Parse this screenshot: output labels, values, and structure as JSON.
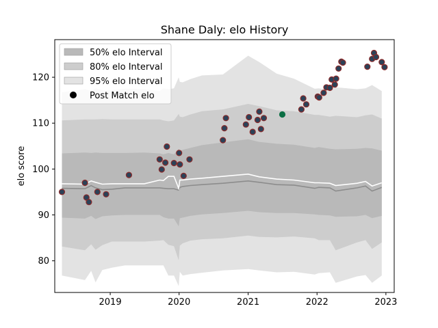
{
  "chart_data": {
    "type": "scatter",
    "title": "Shane Daly: elo History",
    "xlabel": "",
    "ylabel": "elo score",
    "xlim": [
      "2018-03-13",
      "2023-02-14"
    ],
    "ylim": [
      73.1,
      128.2
    ],
    "x_ticks": [
      "2019-01-01",
      "2020-01-01",
      "2021-01-01",
      "2022-01-01",
      "2023-01-01"
    ],
    "x_tick_labels": [
      "2019",
      "2020",
      "2021",
      "2022",
      "2023"
    ],
    "y_ticks": [
      80,
      90,
      100,
      110,
      120
    ],
    "y_tick_labels": [
      "80",
      "90",
      "100",
      "110",
      "120"
    ],
    "grid": false,
    "legend_position": "top-left",
    "colors": {
      "band95": "#e3e3e3",
      "band80": "#cdcdcd",
      "band50": "#b9b9b9",
      "mean_line": "#8c8c8c",
      "upper_line": "#ffffff",
      "point_fill": "#2b4258",
      "point_edge": "#8b2a2a",
      "highlight_fill": "#0b6e44"
    },
    "legend": [
      {
        "label": "50% elo Interval",
        "kind": "band50"
      },
      {
        "label": "80% elo Interval",
        "kind": "band80"
      },
      {
        "label": "95% elo Interval",
        "kind": "band95"
      },
      {
        "label": "Post Match elo",
        "kind": "point"
      }
    ],
    "interval_x": [
      "2018-04-20",
      "2018-08-20",
      "2018-09-22",
      "2018-10-15",
      "2018-11-20",
      "2019-01-10",
      "2019-03-20",
      "2019-07-01",
      "2019-09-20",
      "2019-10-10",
      "2019-11-05",
      "2019-12-05",
      "2019-12-30",
      "2020-01-05",
      "2020-01-20",
      "2020-03-01",
      "2020-05-01",
      "2020-08-20",
      "2021-01-01",
      "2021-03-01",
      "2021-06-01",
      "2021-09-01",
      "2021-12-20",
      "2022-01-10",
      "2022-03-10",
      "2022-04-10",
      "2022-08-01",
      "2022-09-15",
      "2022-10-20",
      "2022-12-10"
    ],
    "band95": [
      [
        76.8,
        75.8,
        77.8,
        75.3,
        78.0,
        78.5,
        79.0,
        79.0,
        79.0,
        79.0,
        76.8,
        76.8,
        74.5,
        77.6,
        76.8,
        77.1,
        77.4,
        77.9,
        78.2,
        77.9,
        77.5,
        77.6,
        77.0,
        77.3,
        77.5,
        75.2,
        76.6,
        76.9,
        75.2,
        76.8
      ],
      [
        116.7,
        117.4,
        117.0,
        117.6,
        117.2,
        117.2,
        117.5,
        117.4,
        117.0,
        117.6,
        117.4,
        117.6,
        120.0,
        119.0,
        118.9,
        119.6,
        120.4,
        120.6,
        124.7,
        123.3,
        120.8,
        119.7,
        117.5,
        117.6,
        117.2,
        117.8,
        117.4,
        117.6,
        118.3,
        117.0
      ]
    ],
    "band80": [
      [
        83.1,
        82.3,
        83.6,
        82.4,
        83.4,
        84.2,
        84.2,
        84.2,
        84.4,
        84.5,
        83.5,
        83.2,
        80.1,
        83.3,
        83.8,
        84.4,
        84.7,
        84.9,
        85.5,
        85.2,
        85.1,
        85.3,
        84.9,
        84.5,
        84.5,
        82.3,
        84.0,
        84.5,
        82.6,
        84.0
      ],
      [
        110.6,
        110.8,
        110.8,
        110.8,
        110.9,
        110.8,
        110.8,
        110.8,
        110.8,
        110.6,
        110.4,
        110.6,
        112.0,
        111.4,
        111.3,
        111.9,
        112.6,
        113.0,
        114.2,
        113.7,
        112.8,
        112.6,
        111.8,
        111.8,
        111.4,
        111.6,
        111.3,
        111.7,
        111.9,
        111.0
      ]
    ],
    "band50": [
      [
        89.4,
        89.2,
        89.8,
        89.1,
        89.7,
        89.9,
        90.0,
        90.0,
        90.0,
        89.5,
        89.2,
        89.2,
        87.5,
        89.3,
        89.4,
        89.8,
        90.1,
        90.4,
        90.9,
        90.6,
        90.4,
        90.4,
        90.1,
        90.0,
        89.9,
        89.6,
        89.7,
        90.0,
        89.3,
        89.8
      ],
      [
        103.4,
        103.6,
        103.5,
        103.6,
        103.5,
        103.5,
        103.5,
        103.6,
        103.4,
        103.2,
        103.5,
        103.2,
        104.4,
        104.0,
        104.2,
        104.6,
        105.2,
        105.8,
        106.5,
        105.9,
        105.5,
        105.3,
        104.6,
        104.8,
        104.4,
        104.3,
        104.4,
        104.6,
        104.5,
        104.0
      ]
    ],
    "mean_line": [
      95.8,
      95.7,
      96.4,
      95.9,
      95.5,
      95.6,
      95.9,
      95.9,
      95.9,
      95.8,
      95.7,
      95.7,
      95.4,
      96.0,
      96.2,
      96.4,
      96.6,
      96.9,
      97.4,
      97.1,
      96.6,
      96.5,
      95.8,
      96.0,
      95.9,
      95.2,
      95.9,
      96.3,
      95.2,
      96.0
    ],
    "upper_line": [
      96.8,
      96.7,
      97.4,
      97.1,
      96.7,
      96.8,
      96.8,
      96.8,
      97.6,
      97.5,
      98.4,
      98.4,
      95.8,
      97.6,
      97.6,
      97.8,
      98.0,
      98.4,
      98.9,
      98.3,
      97.8,
      97.6,
      97.0,
      97.0,
      96.9,
      96.4,
      96.9,
      97.3,
      96.3,
      97.0
    ],
    "points": [
      {
        "x": "2018-04-20",
        "y": 95.0
      },
      {
        "x": "2018-08-20",
        "y": 97.0
      },
      {
        "x": "2018-08-28",
        "y": 93.8
      },
      {
        "x": "2018-09-10",
        "y": 92.8
      },
      {
        "x": "2018-10-25",
        "y": 95.0
      },
      {
        "x": "2018-12-10",
        "y": 94.5
      },
      {
        "x": "2019-04-10",
        "y": 98.7
      },
      {
        "x": "2019-09-20",
        "y": 102.1
      },
      {
        "x": "2019-10-01",
        "y": 99.9
      },
      {
        "x": "2019-10-20",
        "y": 101.4
      },
      {
        "x": "2019-10-28",
        "y": 104.9
      },
      {
        "x": "2019-12-05",
        "y": 101.3
      },
      {
        "x": "2020-01-01",
        "y": 103.5
      },
      {
        "x": "2020-01-05",
        "y": 101.0
      },
      {
        "x": "2020-01-25",
        "y": 98.5
      },
      {
        "x": "2020-02-25",
        "y": 102.1
      },
      {
        "x": "2020-08-20",
        "y": 106.3
      },
      {
        "x": "2020-08-28",
        "y": 108.9
      },
      {
        "x": "2020-09-05",
        "y": 111.1
      },
      {
        "x": "2020-12-20",
        "y": 109.7
      },
      {
        "x": "2021-01-05",
        "y": 111.3
      },
      {
        "x": "2021-01-25",
        "y": 108.1
      },
      {
        "x": "2021-02-20",
        "y": 110.7
      },
      {
        "x": "2021-03-01",
        "y": 112.5
      },
      {
        "x": "2021-03-10",
        "y": 108.7
      },
      {
        "x": "2021-03-25",
        "y": 111.1
      },
      {
        "x": "2021-07-01",
        "y": 111.9,
        "highlight": true
      },
      {
        "x": "2021-10-10",
        "y": 113.0
      },
      {
        "x": "2021-10-20",
        "y": 115.4
      },
      {
        "x": "2021-11-05",
        "y": 114.1
      },
      {
        "x": "2022-01-05",
        "y": 115.8
      },
      {
        "x": "2022-01-12",
        "y": 115.6
      },
      {
        "x": "2022-02-05",
        "y": 116.6
      },
      {
        "x": "2022-02-20",
        "y": 117.8
      },
      {
        "x": "2022-03-10",
        "y": 117.7
      },
      {
        "x": "2022-03-20",
        "y": 119.5
      },
      {
        "x": "2022-04-05",
        "y": 118.4
      },
      {
        "x": "2022-04-12",
        "y": 119.7
      },
      {
        "x": "2022-04-25",
        "y": 121.9
      },
      {
        "x": "2022-05-10",
        "y": 123.4
      },
      {
        "x": "2022-05-18",
        "y": 123.2
      },
      {
        "x": "2022-09-25",
        "y": 122.3
      },
      {
        "x": "2022-10-20",
        "y": 124.0
      },
      {
        "x": "2022-10-30",
        "y": 125.3
      },
      {
        "x": "2022-11-10",
        "y": 124.4
      },
      {
        "x": "2022-12-10",
        "y": 123.3
      },
      {
        "x": "2022-12-25",
        "y": 122.2
      }
    ]
  }
}
